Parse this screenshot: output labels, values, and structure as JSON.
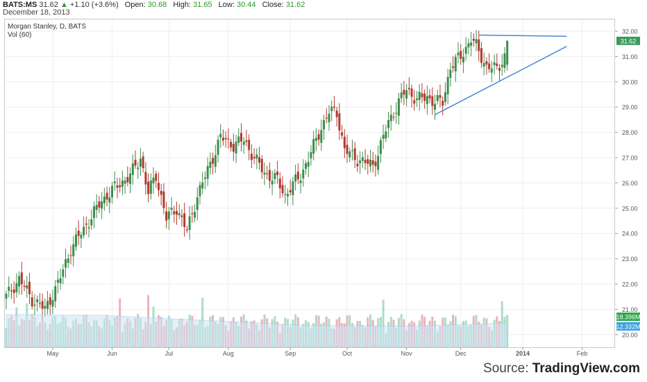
{
  "header": {
    "symbol": "BATS:MS",
    "last": "31.62",
    "change_arrow": "▲",
    "change": "+1.10 (+3.6%)",
    "open_label": "Open:",
    "open": "30.68",
    "high_label": "High:",
    "high": "31.65",
    "low_label": "Low:",
    "low": "30.44",
    "close_label": "Close:",
    "close": "31.62",
    "date": "December 18, 2013"
  },
  "chart_title": "Morgan Stanley, D, BATS",
  "volume_label": "Vol (60)",
  "source": {
    "prefix": "Source: ",
    "brand": "TradingView.com"
  },
  "colors": {
    "up": "#3c8d4c",
    "down": "#b23a2e",
    "trendline": "#4a86d8",
    "vol_up": "#9fd6bd",
    "vol_down": "#e8a6ae",
    "vol_ma": "#cfe4f5",
    "price_tag": "#3c9a5f",
    "vol_tag_1": "#2ba84a",
    "vol_tag_2": "#36a3e0",
    "grid": "#eeeeee"
  },
  "chart_data": {
    "type": "candlestick",
    "title": "Morgan Stanley, D, BATS",
    "y_ticks": [
      "32.00",
      "31.00",
      "30.00",
      "29.00",
      "28.00",
      "27.00",
      "26.00",
      "25.00",
      "24.00",
      "23.00",
      "22.00",
      "21.00",
      "20.00"
    ],
    "ylim": [
      19.4,
      32.3
    ],
    "x_ticks": [
      "May",
      "Jun",
      "Jul",
      "Aug",
      "Sep",
      "Oct",
      "Nov",
      "Dec",
      "2014",
      "Feb"
    ],
    "price_tag": "31.62",
    "volume_tags": [
      "18.396M",
      "12.332M"
    ],
    "anchors": [
      [
        0,
        21.5
      ],
      [
        5,
        22.2
      ],
      [
        10,
        21.4
      ],
      [
        15,
        21.0
      ],
      [
        20,
        22.0
      ],
      [
        25,
        23.4
      ],
      [
        32,
        24.5
      ],
      [
        37,
        25.3
      ],
      [
        42,
        25.8
      ],
      [
        48,
        26.3
      ],
      [
        52,
        27.0
      ],
      [
        55,
        25.6
      ],
      [
        58,
        26.3
      ],
      [
        62,
        24.6
      ],
      [
        66,
        25.0
      ],
      [
        70,
        24.1
      ],
      [
        74,
        25.5
      ],
      [
        78,
        26.5
      ],
      [
        83,
        27.8
      ],
      [
        88,
        27.5
      ],
      [
        92,
        27.7
      ],
      [
        96,
        27.0
      ],
      [
        100,
        26.4
      ],
      [
        105,
        26.1
      ],
      [
        108,
        25.5
      ],
      [
        110,
        25.8
      ],
      [
        114,
        26.3
      ],
      [
        118,
        27.2
      ],
      [
        122,
        28.2
      ],
      [
        125,
        28.8
      ],
      [
        128,
        28.8
      ],
      [
        131,
        27.3
      ],
      [
        135,
        27.0
      ],
      [
        139,
        26.8
      ],
      [
        142,
        26.7
      ],
      [
        144,
        27.2
      ],
      [
        148,
        28.4
      ],
      [
        152,
        29.2
      ],
      [
        155,
        29.7
      ],
      [
        159,
        29.3
      ],
      [
        163,
        29.4
      ],
      [
        166,
        29.2
      ],
      [
        169,
        29.2
      ],
      [
        172,
        30.6
      ],
      [
        176,
        31.0
      ],
      [
        180,
        31.7
      ],
      [
        182,
        31.4
      ],
      [
        186,
        30.6
      ],
      [
        190,
        30.5
      ],
      [
        194,
        31.2
      ]
    ],
    "trendlines": [
      {
        "from": {
          "d": 183,
          "price": 31.85
        },
        "to": {
          "d": 217,
          "price": 31.8
        }
      },
      {
        "from": {
          "d": 166,
          "price": 28.7
        },
        "to": {
          "d": 217,
          "price": 31.4
        }
      }
    ],
    "volume_ma_levels": [
      "19.6M",
      "19.4M",
      "18.2M",
      "17.1M",
      "16.9M",
      "17.6M"
    ]
  }
}
